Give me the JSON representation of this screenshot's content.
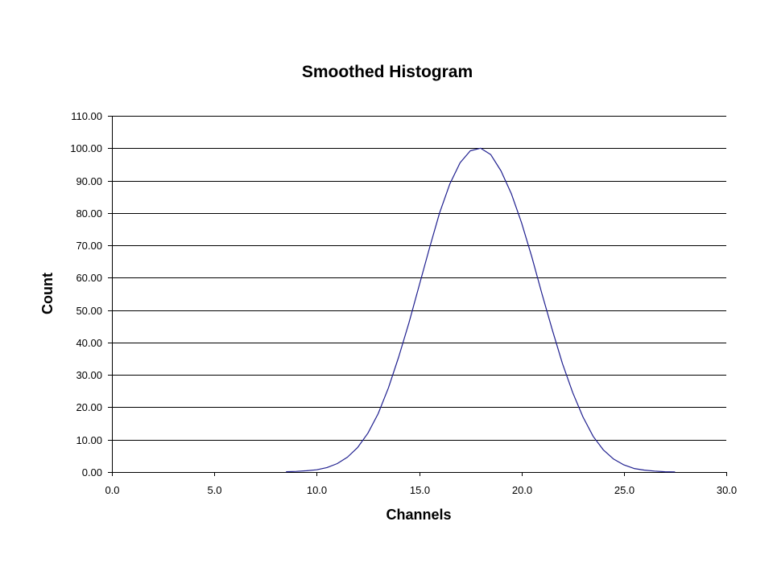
{
  "chart_data": {
    "type": "line",
    "title": "Smoothed Histogram",
    "xlabel": "Channels",
    "ylabel": "Count",
    "xlim": [
      0,
      30
    ],
    "ylim": [
      0,
      110
    ],
    "x_ticks": [
      "0.0",
      "5.0",
      "10.0",
      "15.0",
      "20.0",
      "25.0",
      "30.0"
    ],
    "y_ticks": [
      "0.00",
      "10.00",
      "20.00",
      "30.00",
      "40.00",
      "50.00",
      "60.00",
      "70.00",
      "80.00",
      "90.00",
      "100.00",
      "110.00"
    ],
    "grid": "horizontal",
    "legend": "none",
    "series": [
      {
        "color": "#1f1f8f",
        "x": [
          8.5,
          9.0,
          9.5,
          10.0,
          10.5,
          11.0,
          11.5,
          12.0,
          12.5,
          13.0,
          13.5,
          14.0,
          14.5,
          15.0,
          15.5,
          16.0,
          16.5,
          17.0,
          17.5,
          18.0,
          18.5,
          19.0,
          19.5,
          20.0,
          20.5,
          21.0,
          21.5,
          22.0,
          22.5,
          23.0,
          23.5,
          24.0,
          24.5,
          25.0,
          25.5,
          26.0,
          26.5,
          27.0,
          27.5
        ],
        "y": [
          0.1,
          0.2,
          0.4,
          0.7,
          1.4,
          2.6,
          4.6,
          7.6,
          12.0,
          18.0,
          26.0,
          35.5,
          46.0,
          57.5,
          69.0,
          80.0,
          89.0,
          95.5,
          99.2,
          100.0,
          98.0,
          93.0,
          86.0,
          77.0,
          66.5,
          55.0,
          44.0,
          33.5,
          24.5,
          17.0,
          11.0,
          6.8,
          4.0,
          2.2,
          1.1,
          0.6,
          0.3,
          0.1,
          0.05
        ]
      }
    ]
  }
}
